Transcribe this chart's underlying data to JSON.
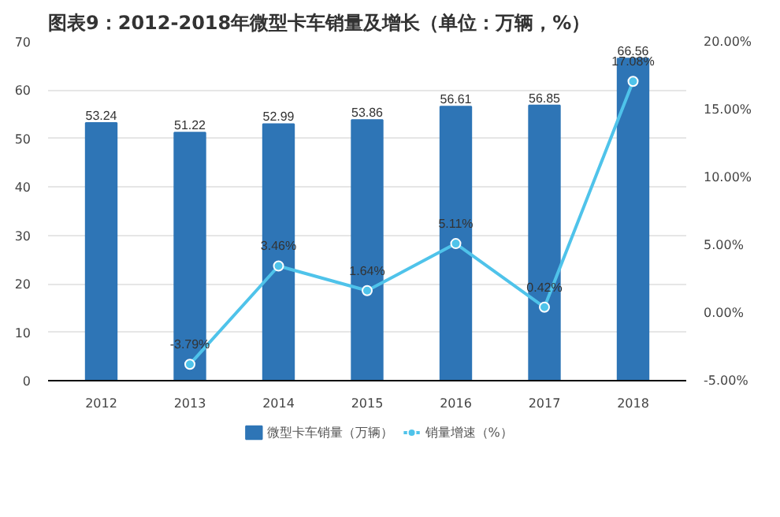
{
  "chart_data": {
    "type": "bar",
    "title": "图表9：2012-2018年微型卡车销量及增长（单位：万辆，%）",
    "categories": [
      "2012",
      "2013",
      "2014",
      "2015",
      "2016",
      "2017",
      "2018"
    ],
    "series": [
      {
        "name": "微型卡车销量（万辆）",
        "color": "#2e75b6",
        "values": [
          53.24,
          51.22,
          52.99,
          53.86,
          56.61,
          56.85,
          66.56
        ],
        "value_labels": [
          "53.24",
          "51.22",
          "52.99",
          "53.86",
          "56.61",
          "56.85",
          "66.56"
        ]
      },
      {
        "name": "销量增速（%）",
        "type": "line",
        "axis": "y2",
        "color": "#4fc3ea",
        "marker": "circle",
        "values": [
          null,
          -3.79,
          3.46,
          1.64,
          5.11,
          0.42,
          17.08
        ],
        "value_labels": [
          null,
          "-3.79%",
          "3.46%",
          "1.64%",
          "5.11%",
          "0.42%",
          "17.08%"
        ]
      }
    ],
    "ylim": [
      0,
      70
    ],
    "yticks": [
      0,
      10,
      20,
      30,
      40,
      50,
      60,
      70
    ],
    "y2lim": [
      -5,
      20
    ],
    "y2ticks": [
      {
        "value": -5,
        "label": "-5.00%"
      },
      {
        "value": 0,
        "label": "0.00%"
      },
      {
        "value": 5,
        "label": "5.00%"
      },
      {
        "value": 10,
        "label": "10.00%"
      },
      {
        "value": 15,
        "label": "15.00%"
      },
      {
        "value": 20,
        "label": "20.00%"
      }
    ],
    "grid": "y",
    "legend": "bottom"
  }
}
